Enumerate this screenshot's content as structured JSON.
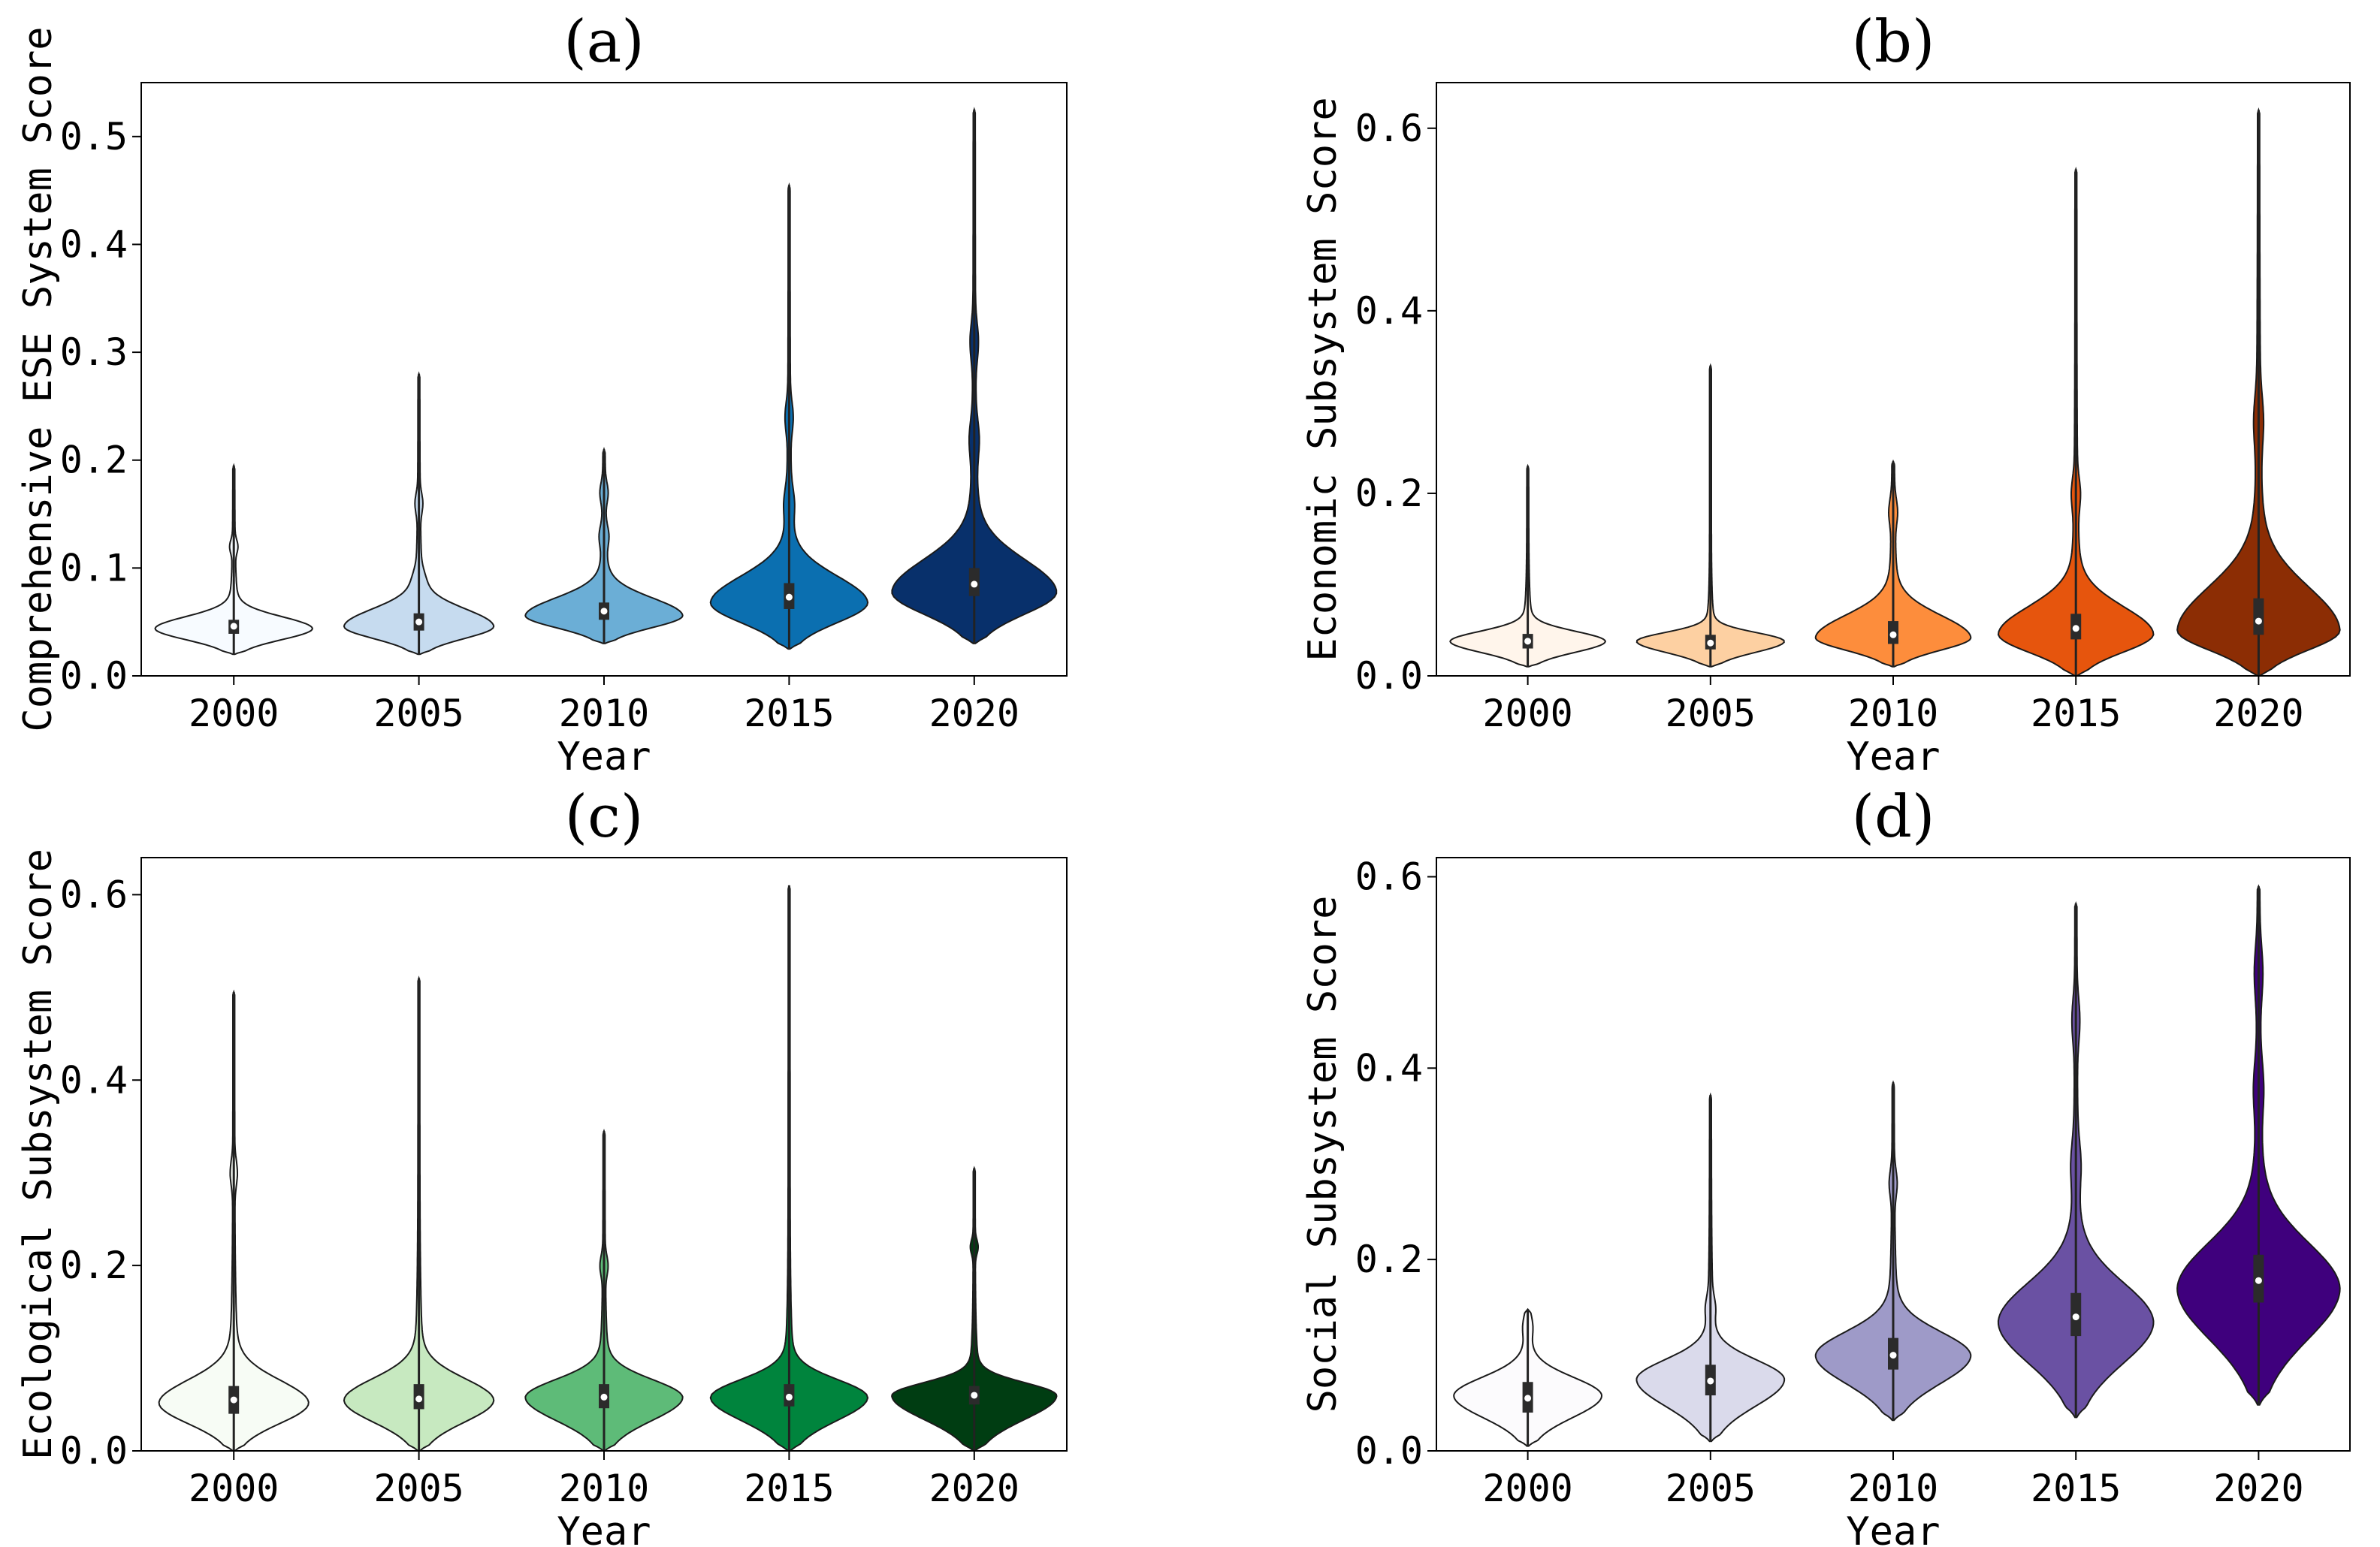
{
  "chart_data": [
    {
      "type": "violin",
      "title": "(a)",
      "xlabel": "Year",
      "ylabel": "Comprehensive ESE System Score",
      "categories": [
        "2000",
        "2005",
        "2010",
        "2015",
        "2020"
      ],
      "yticks": [
        "0.0",
        "0.1",
        "0.2",
        "0.3",
        "0.4",
        "0.5"
      ],
      "ylim": [
        0,
        0.55
      ],
      "series": [
        {
          "category": "2000",
          "color": "#f7fbff",
          "min": 0.02,
          "q1": 0.039,
          "median": 0.046,
          "q3": 0.052,
          "max": 0.195,
          "mode": 0.044,
          "halfwidth": 0.42,
          "secondary_bumps": [
            0.12
          ]
        },
        {
          "category": "2005",
          "color": "#c6dbef",
          "min": 0.02,
          "q1": 0.042,
          "median": 0.05,
          "q3": 0.058,
          "max": 0.28,
          "mode": 0.046,
          "halfwidth": 0.4,
          "secondary_bumps": [
            0.16,
            0.09
          ]
        },
        {
          "category": "2010",
          "color": "#6baed6",
          "min": 0.03,
          "q1": 0.052,
          "median": 0.06,
          "q3": 0.068,
          "max": 0.21,
          "mode": 0.056,
          "halfwidth": 0.42,
          "secondary_bumps": [
            0.17,
            0.13
          ]
        },
        {
          "category": "2015",
          "color": "#0b6fb0",
          "min": 0.025,
          "q1": 0.062,
          "median": 0.073,
          "q3": 0.086,
          "max": 0.455,
          "mode": 0.068,
          "halfwidth": 0.42,
          "secondary_bumps": [
            0.24,
            0.16
          ]
        },
        {
          "category": "2020",
          "color": "#08306b",
          "min": 0.03,
          "q1": 0.074,
          "median": 0.085,
          "q3": 0.1,
          "max": 0.525,
          "mode": 0.078,
          "halfwidth": 0.44,
          "secondary_bumps": [
            0.31,
            0.22
          ]
        }
      ]
    },
    {
      "type": "violin",
      "title": "(b)",
      "xlabel": "Year",
      "ylabel": "Economic Subsystem Score",
      "categories": [
        "2000",
        "2005",
        "2010",
        "2015",
        "2020"
      ],
      "yticks": [
        "0.0",
        "0.2",
        "0.4",
        "0.6"
      ],
      "ylim": [
        0,
        0.65
      ],
      "series": [
        {
          "category": "2000",
          "color": "#fff5eb",
          "min": 0.01,
          "q1": 0.03,
          "median": 0.038,
          "q3": 0.046,
          "max": 0.23,
          "mode": 0.038,
          "halfwidth": 0.42,
          "secondary_bumps": []
        },
        {
          "category": "2005",
          "color": "#fdd0a2",
          "min": 0.01,
          "q1": 0.029,
          "median": 0.036,
          "q3": 0.045,
          "max": 0.34,
          "mode": 0.038,
          "halfwidth": 0.4,
          "secondary_bumps": []
        },
        {
          "category": "2010",
          "color": "#fd8d3c",
          "min": 0.01,
          "q1": 0.035,
          "median": 0.045,
          "q3": 0.06,
          "max": 0.235,
          "mode": 0.042,
          "halfwidth": 0.42,
          "secondary_bumps": [
            0.18
          ]
        },
        {
          "category": "2015",
          "color": "#e6550d",
          "min": 0.0,
          "q1": 0.04,
          "median": 0.052,
          "q3": 0.068,
          "max": 0.555,
          "mode": 0.046,
          "halfwidth": 0.42,
          "secondary_bumps": [
            0.2
          ]
        },
        {
          "category": "2020",
          "color": "#8c2d04",
          "min": 0.0,
          "q1": 0.045,
          "median": 0.06,
          "q3": 0.085,
          "max": 0.62,
          "mode": 0.05,
          "halfwidth": 0.44,
          "secondary_bumps": [
            0.28
          ]
        }
      ]
    },
    {
      "type": "violin",
      "title": "(c)",
      "xlabel": "Year",
      "ylabel": "Ecological Subsystem Score",
      "categories": [
        "2000",
        "2005",
        "2010",
        "2015",
        "2020"
      ],
      "yticks": [
        "0.0",
        "0.2",
        "0.4",
        "0.6"
      ],
      "ylim": [
        0,
        0.64
      ],
      "series": [
        {
          "category": "2000",
          "color": "#f7fcf5",
          "min": 0.0,
          "q1": 0.04,
          "median": 0.055,
          "q3": 0.07,
          "max": 0.495,
          "mode": 0.052,
          "halfwidth": 0.4,
          "secondary_bumps": [
            0.3
          ]
        },
        {
          "category": "2005",
          "color": "#c7e9c0",
          "min": 0.0,
          "q1": 0.045,
          "median": 0.056,
          "q3": 0.072,
          "max": 0.51,
          "mode": 0.055,
          "halfwidth": 0.4,
          "secondary_bumps": []
        },
        {
          "category": "2010",
          "color": "#5ebb78",
          "min": 0.0,
          "q1": 0.046,
          "median": 0.058,
          "q3": 0.072,
          "max": 0.345,
          "mode": 0.058,
          "halfwidth": 0.42,
          "secondary_bumps": [
            0.2
          ]
        },
        {
          "category": "2015",
          "color": "#00843d",
          "min": 0.0,
          "q1": 0.048,
          "median": 0.058,
          "q3": 0.072,
          "max": 0.61,
          "mode": 0.058,
          "halfwidth": 0.42,
          "secondary_bumps": []
        },
        {
          "category": "2020",
          "color": "#003d12",
          "min": 0.0,
          "q1": 0.05,
          "median": 0.06,
          "q3": 0.07,
          "max": 0.305,
          "mode": 0.06,
          "halfwidth": 0.44,
          "secondary_bumps": [
            0.22
          ]
        }
      ]
    },
    {
      "type": "violin",
      "title": "(d)",
      "xlabel": "Year",
      "ylabel": "Social Subsystem Score",
      "categories": [
        "2000",
        "2005",
        "2010",
        "2015",
        "2020"
      ],
      "yticks": [
        "0.0",
        "0.2",
        "0.4",
        "0.6"
      ],
      "ylim": [
        0,
        0.62
      ],
      "series": [
        {
          "category": "2000",
          "color": "#fcfbfd",
          "min": 0.005,
          "q1": 0.04,
          "median": 0.055,
          "q3": 0.072,
          "max": 0.148,
          "mode": 0.058,
          "halfwidth": 0.4,
          "secondary_bumps": [
            0.13
          ]
        },
        {
          "category": "2005",
          "color": "#dadaeb",
          "min": 0.01,
          "q1": 0.058,
          "median": 0.073,
          "q3": 0.09,
          "max": 0.372,
          "mode": 0.075,
          "halfwidth": 0.4,
          "secondary_bumps": [
            0.15
          ]
        },
        {
          "category": "2010",
          "color": "#9e9ac8",
          "min": 0.032,
          "q1": 0.085,
          "median": 0.1,
          "q3": 0.118,
          "max": 0.385,
          "mode": 0.1,
          "halfwidth": 0.42,
          "secondary_bumps": [
            0.28
          ]
        },
        {
          "category": "2015",
          "color": "#6a51a3",
          "min": 0.035,
          "q1": 0.12,
          "median": 0.14,
          "q3": 0.165,
          "max": 0.572,
          "mode": 0.135,
          "halfwidth": 0.42,
          "secondary_bumps": [
            0.45,
            0.3
          ]
        },
        {
          "category": "2020",
          "color": "#3f007d",
          "min": 0.048,
          "q1": 0.155,
          "median": 0.178,
          "q3": 0.205,
          "max": 0.59,
          "mode": 0.17,
          "halfwidth": 0.44,
          "secondary_bumps": [
            0.5,
            0.38
          ]
        }
      ]
    }
  ]
}
